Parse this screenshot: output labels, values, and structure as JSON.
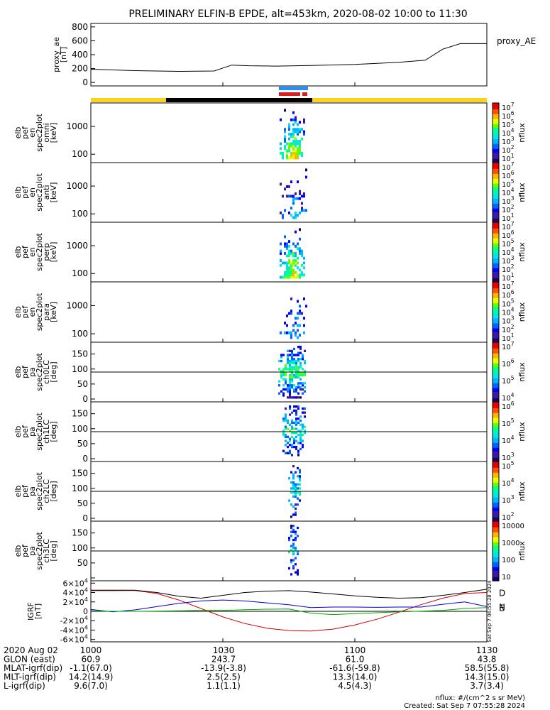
{
  "title": "PRELIMINARY ELFIN-B EPDE, alt=453km, 2020-08-02 10:00 to 11:30",
  "colors": {
    "science_zone": "#f7d21e",
    "eclipse": "#000000",
    "fast_mode_blue": "#1e90ff",
    "fast_mode_red": "#e21a1a",
    "igrf_r": "#cc0000",
    "igrf_n": "#0000cc",
    "igrf_e": "#00aa00",
    "igrf_total": "#000000"
  },
  "chart_data": [
    {
      "type": "line",
      "panel": "proxy_ae",
      "ylabel": "proxy_ae\n[nT]",
      "legend": "proxy_AE",
      "yticks": [
        "0",
        "200",
        "400",
        "600",
        "800"
      ],
      "ylim": [
        -50,
        850
      ],
      "x_minutes": [
        0,
        10,
        20,
        28,
        32,
        36,
        42,
        50,
        60,
        70,
        76,
        80,
        84,
        90
      ],
      "values": [
        190,
        170,
        160,
        165,
        250,
        240,
        235,
        245,
        260,
        290,
        320,
        480,
        560,
        560
      ]
    },
    {
      "type": "heatmap",
      "panel": "en_omni",
      "ylabel": [
        "elb",
        "pef",
        "en",
        "spec2plot",
        "omni",
        "[keV]"
      ],
      "yticks": [
        "100",
        "1000"
      ],
      "colorbar_label": "nflux",
      "colorbar_ticks": [
        "10^1",
        "10^2",
        "10^3",
        "10^4",
        "10^5",
        "10^6",
        "10^7"
      ]
    },
    {
      "type": "heatmap",
      "panel": "en_anti",
      "ylabel": [
        "elb",
        "pef",
        "en",
        "spec2plot",
        "anti",
        "[keV]"
      ],
      "yticks": [
        "100",
        "1000"
      ],
      "colorbar_label": "nflux",
      "colorbar_ticks": [
        "10^1",
        "10^2",
        "10^3",
        "10^4",
        "10^5",
        "10^6",
        "10^7"
      ]
    },
    {
      "type": "heatmap",
      "panel": "en_perp",
      "ylabel": [
        "elb",
        "pef",
        "en",
        "spec2plot",
        "perp",
        "[keV]"
      ],
      "yticks": [
        "100",
        "1000"
      ],
      "colorbar_label": "nflux",
      "colorbar_ticks": [
        "10^1",
        "10^2",
        "10^3",
        "10^4",
        "10^5",
        "10^6",
        "10^7"
      ]
    },
    {
      "type": "heatmap",
      "panel": "en_para",
      "ylabel": [
        "elb",
        "pef",
        "en",
        "spec2plot",
        "para",
        "[keV]"
      ],
      "yticks": [
        "100",
        "1000"
      ],
      "colorbar_label": "nflux",
      "colorbar_ticks": [
        "10^1",
        "10^2",
        "10^3",
        "10^4",
        "10^5",
        "10^6",
        "10^7"
      ]
    },
    {
      "type": "heatmap",
      "panel": "pa_ch0LC",
      "ylabel": [
        "elb",
        "pef",
        "pa",
        "spec2plot",
        "ch0LC",
        "[deg]"
      ],
      "yticks": [
        "0",
        "50",
        "100",
        "150"
      ],
      "colorbar_label": "nflux",
      "colorbar_ticks": [
        "10^4",
        "10^5",
        "10^6",
        "10^7"
      ]
    },
    {
      "type": "heatmap",
      "panel": "pa_ch1LC",
      "ylabel": [
        "elb",
        "pef",
        "pa",
        "spec2plot",
        "ch1LC",
        "[deg]"
      ],
      "yticks": [
        "0",
        "50",
        "100",
        "150"
      ],
      "colorbar_label": "nflux",
      "colorbar_ticks": [
        "10^3",
        "10^4",
        "10^5",
        "10^6"
      ]
    },
    {
      "type": "heatmap",
      "panel": "pa_ch2LC",
      "ylabel": [
        "elb",
        "pef",
        "pa",
        "spec2plot",
        "ch2LC",
        "[deg]"
      ],
      "yticks": [
        "0",
        "50",
        "100",
        "150"
      ],
      "colorbar_label": "nflux",
      "colorbar_ticks": [
        "10^2",
        "10^3",
        "10^4",
        "10^5"
      ]
    },
    {
      "type": "heatmap",
      "panel": "pa_ch3LC",
      "ylabel": [
        "elb",
        "pef",
        "pa",
        "spec2plot",
        "ch3LC",
        "[deg]"
      ],
      "yticks": [
        "50",
        "100",
        "150"
      ],
      "colorbar_label": "nflux",
      "colorbar_ticks": [
        "10",
        "100",
        "1000",
        "10000"
      ]
    },
    {
      "type": "line",
      "panel": "igrf",
      "ylabel": "IGRF\n[nT]",
      "yticks": [
        "-6×10^4",
        "-4×10^4",
        "-2×10^4",
        "0",
        "2×10^4",
        "4×10^4",
        "6×10^4"
      ],
      "ylim": [
        -65000,
        65000
      ],
      "x_minutes": [
        0,
        5,
        10,
        15,
        20,
        25,
        30,
        35,
        40,
        45,
        50,
        55,
        60,
        65,
        70,
        75,
        80,
        85,
        90
      ],
      "series": [
        {
          "name": "D",
          "color": "#cc0000",
          "values": [
            44000,
            44000,
            44500,
            38000,
            24000,
            6000,
            -12000,
            -26000,
            -36000,
            -41000,
            -42000,
            -38000,
            -29000,
            -17000,
            -2000,
            14000,
            28000,
            38000,
            40000
          ]
        },
        {
          "name": "N",
          "color": "#0000cc",
          "values": [
            4000,
            -1000,
            3000,
            10000,
            17000,
            22000,
            24000,
            22000,
            18000,
            14000,
            8000,
            9000,
            9000,
            8500,
            9000,
            9000,
            15000,
            20000,
            10000
          ]
        },
        {
          "name": "E",
          "color": "#00aa00",
          "values": [
            1000,
            0,
            0,
            500,
            1000,
            2000,
            2000,
            3500,
            4500,
            5000,
            -4000,
            -7000,
            -5000,
            -3000,
            -1000,
            500,
            2000,
            6000,
            8000
          ]
        },
        {
          "name": "",
          "color": "#000000",
          "values": [
            45000,
            45000,
            45000,
            40000,
            32000,
            28000,
            34000,
            40000,
            43000,
            44000,
            41000,
            37000,
            33000,
            30000,
            28000,
            29000,
            34000,
            40000,
            47000
          ]
        }
      ]
    }
  ],
  "colorbar_side_text": "Sat Sep  7 06:55:28 2024",
  "footer": {
    "rows": [
      {
        "label": "2020 Aug 02",
        "values": [
          "1000",
          "1030",
          "1100",
          "1130"
        ]
      },
      {
        "label": "GLON (east)",
        "values": [
          "60.9",
          "243.7",
          "61.0",
          "43.8"
        ]
      },
      {
        "label": "MLAT-igrf(dip)",
        "values": [
          "-1.1(67.0)",
          "-13.9(-3.8)",
          "-61.6(-59.8)",
          "58.5(55.8)"
        ]
      },
      {
        "label": "MLT-igrf(dip)",
        "values": [
          "14.2(14.9)",
          "2.5(2.5)",
          "13.3(14.0)",
          "14.3(15.0)"
        ]
      },
      {
        "label": "L-igrf(dip)",
        "values": [
          "9.6(7.0)",
          "1.1(1.1)",
          "4.5(4.3)",
          "3.7(3.4)"
        ]
      }
    ],
    "nflux_units": "nflux: #/(cm^2 s sr MeV)",
    "created": "Created: Sat Sep  7 07:55:28 2024"
  }
}
